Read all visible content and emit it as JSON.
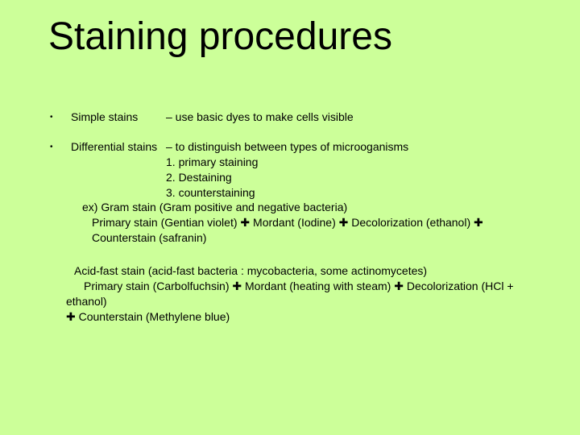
{
  "background_color": "#ccff99",
  "text_color": "#000000",
  "title": {
    "text": "Staining procedures",
    "fontsize": 48
  },
  "body_fontsize": 14,
  "bullets": [
    {
      "label": "Simple stains",
      "desc": "– use basic dyes to make cells visible"
    },
    {
      "label": "Differential stains",
      "desc": "– to distinguish between types of microoganisms",
      "steps": [
        "1. primary staining",
        "2. Destaining",
        "3. counterstaining"
      ],
      "example_lead": "ex) Gram stain (Gram positive and negative bacteria)",
      "example_chain_parts": [
        "Primary stain (Gentian violet)",
        "Mordant (Iodine)",
        "Decolorization (ethanol)",
        "Counterstain (safranin)"
      ],
      "acid_lead": "Acid-fast stain (acid-fast bacteria : mycobacteria, some actinomycetes)",
      "acid_chain_line1_parts": [
        "Primary stain (Carbolfuchsin)",
        "Mordant (heating with steam)",
        "Decolorization (HCl + ethanol)"
      ],
      "acid_chain_line2_parts": [
        "Counterstain (Methylene blue)"
      ]
    }
  ],
  "plus_glyph": "✚"
}
